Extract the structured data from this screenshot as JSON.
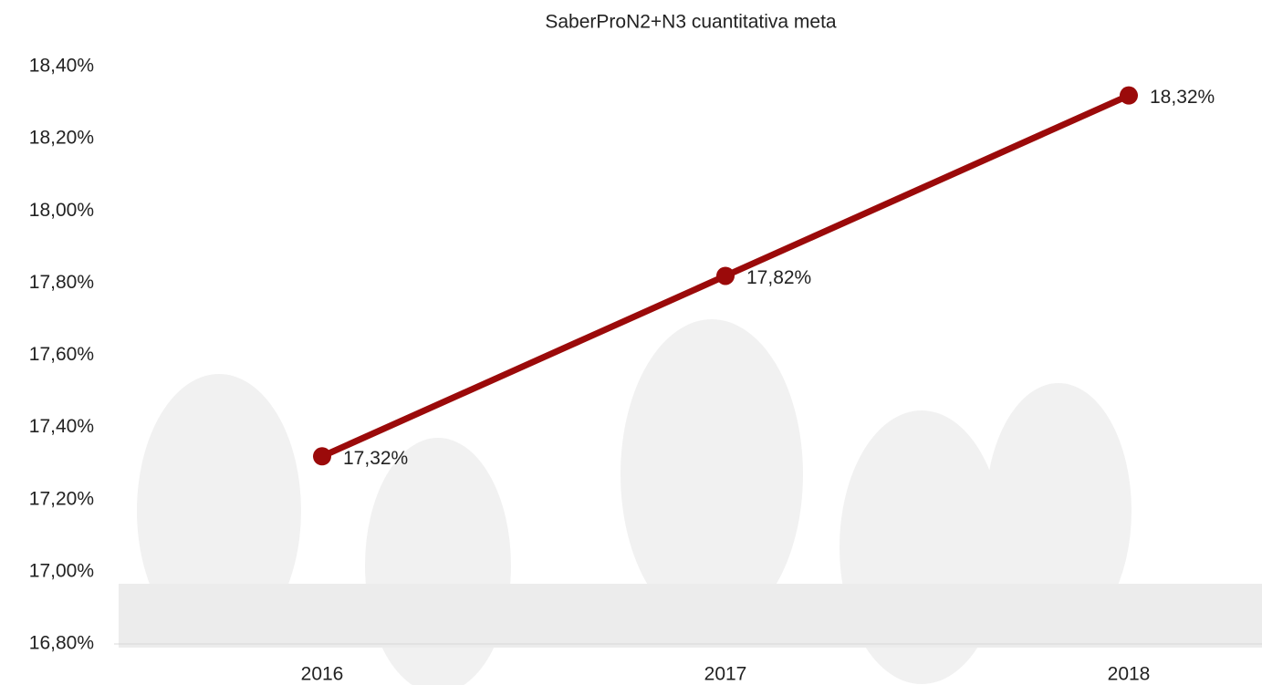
{
  "chart_data": {
    "type": "line",
    "title": "SaberProN2+N3 cuantitativa meta",
    "categories": [
      "2016",
      "2017",
      "2018"
    ],
    "series": [
      {
        "name": "SaberProN2+N3 cuantitativa meta",
        "color": "#9b0a0a",
        "values": [
          17.32,
          17.82,
          18.32
        ],
        "value_labels": [
          "17,32%",
          "17,82%",
          "18,32%"
        ]
      }
    ],
    "ylim": [
      16.8,
      18.4
    ],
    "yticks": [
      {
        "value": 16.8,
        "label": "16,80%"
      },
      {
        "value": 17.0,
        "label": "17,00%"
      },
      {
        "value": 17.2,
        "label": "17,20%"
      },
      {
        "value": 17.4,
        "label": "17,40%"
      },
      {
        "value": 17.6,
        "label": "17,60%"
      },
      {
        "value": 17.8,
        "label": "17,80%"
      },
      {
        "value": 18.0,
        "label": "18,00%"
      },
      {
        "value": 18.2,
        "label": "18,20%"
      },
      {
        "value": 18.4,
        "label": "18,40%"
      }
    ],
    "grid": false
  }
}
